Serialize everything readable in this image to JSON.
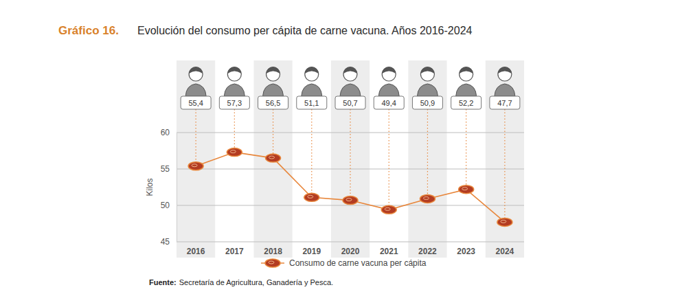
{
  "chart_data": {
    "type": "line",
    "label": "Gráfico 16.",
    "title": "Evolución del consumo per cápita de carne vacuna. Años 2016-2024",
    "y_label": "Kilos",
    "categories": [
      "2016",
      "2017",
      "2018",
      "2019",
      "2020",
      "2021",
      "2022",
      "2023",
      "2024"
    ],
    "series": [
      {
        "name": "Consumo de carne vacuna per cápita",
        "color": "#e8873c",
        "marker": "ellipse",
        "values": [
          55.4,
          57.3,
          56.5,
          51.1,
          50.7,
          49.4,
          50.9,
          52.2,
          47.7
        ],
        "value_labels": [
          "55,4",
          "57,3",
          "56,5",
          "51,1",
          "50,7",
          "49,4",
          "50,9",
          "52,2",
          "47,7"
        ]
      }
    ],
    "ylim": [
      45,
      60
    ],
    "yticks": [
      45,
      50,
      55,
      60
    ],
    "grid": true,
    "data_labels": true,
    "legend": "bottom",
    "source_label": "Fuente:",
    "source": "Secretaría de Agricultura, Ganadería y Pesca."
  }
}
